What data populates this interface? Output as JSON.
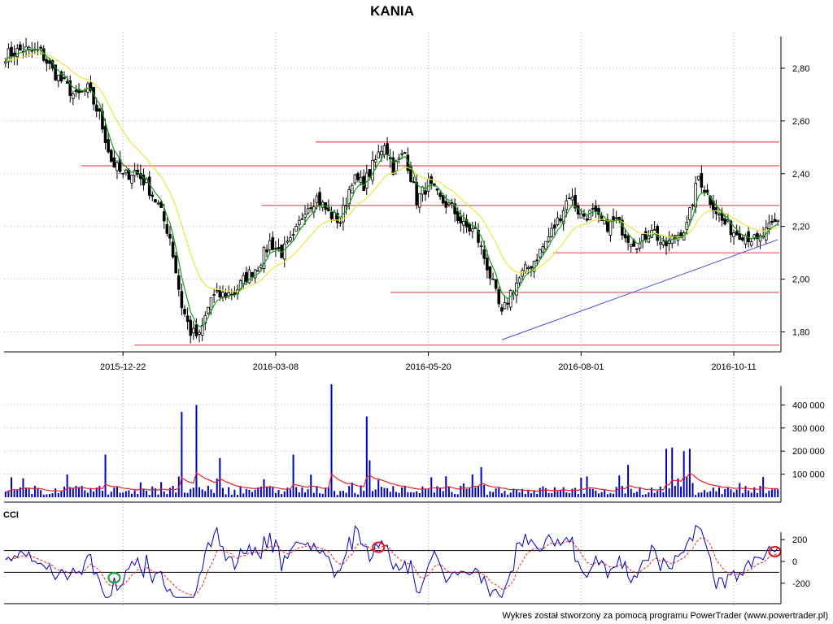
{
  "page": {
    "footer": "Wykres został stworzony za pomocą programu PowerTrader (www.powertrader.pl)"
  },
  "colors": {
    "candle_body": "#000000",
    "ma_fast": "#1a9e1a",
    "ma_slow": "#e8e83c",
    "resistance": "#e8606a",
    "trendline": "#4a4ae0",
    "volume_bar": "#0000c0",
    "volume_avg": "#e82020",
    "cci_line": "#0000c0",
    "cci_signal": "#e82020",
    "oversold_marker": "#20a040",
    "overbought_marker": "#e02020"
  },
  "chart_data": [
    {
      "type": "candlestick",
      "title": "KANIA",
      "x_ticks": [
        "2015-12-22",
        "2016-03-08",
        "2016-05-20",
        "2016-08-01",
        "2016-10-11"
      ],
      "y_ticks": [
        "2,80",
        "2,60",
        "2,40",
        "2,20",
        "2,00",
        "1,80"
      ],
      "ylim": [
        1.74,
        2.92
      ],
      "price_path": [
        [
          0,
          2.85
        ],
        [
          6,
          2.87
        ],
        [
          12,
          2.86
        ],
        [
          16,
          2.79
        ],
        [
          20,
          2.74
        ],
        [
          24,
          2.69
        ],
        [
          28,
          2.72
        ],
        [
          32,
          2.62
        ],
        [
          36,
          2.45
        ],
        [
          40,
          2.39
        ],
        [
          44,
          2.41
        ],
        [
          48,
          2.36
        ],
        [
          52,
          2.28
        ],
        [
          56,
          2.16
        ],
        [
          60,
          1.9
        ],
        [
          63,
          1.8
        ],
        [
          66,
          1.78
        ],
        [
          70,
          1.93
        ],
        [
          74,
          1.94
        ],
        [
          78,
          1.95
        ],
        [
          82,
          2.01
        ],
        [
          86,
          2.05
        ],
        [
          90,
          2.14
        ],
        [
          94,
          2.1
        ],
        [
          98,
          2.15
        ],
        [
          102,
          2.27
        ],
        [
          106,
          2.31
        ],
        [
          110,
          2.25
        ],
        [
          114,
          2.22
        ],
        [
          118,
          2.38
        ],
        [
          122,
          2.36
        ],
        [
          126,
          2.45
        ],
        [
          129,
          2.52
        ],
        [
          132,
          2.42
        ],
        [
          136,
          2.48
        ],
        [
          140,
          2.3
        ],
        [
          144,
          2.36
        ],
        [
          148,
          2.3
        ],
        [
          152,
          2.27
        ],
        [
          156,
          2.2
        ],
        [
          160,
          2.18
        ],
        [
          164,
          2.05
        ],
        [
          167,
          1.94
        ],
        [
          169,
          1.86
        ],
        [
          172,
          1.95
        ],
        [
          176,
          2.02
        ],
        [
          180,
          2.07
        ],
        [
          184,
          2.14
        ],
        [
          188,
          2.22
        ],
        [
          192,
          2.32
        ],
        [
          196,
          2.24
        ],
        [
          200,
          2.25
        ],
        [
          204,
          2.2
        ],
        [
          208,
          2.22
        ],
        [
          212,
          2.16
        ],
        [
          216,
          2.13
        ],
        [
          220,
          2.2
        ],
        [
          224,
          2.12
        ],
        [
          228,
          2.16
        ],
        [
          232,
          2.2
        ],
        [
          236,
          2.39
        ],
        [
          240,
          2.3
        ],
        [
          244,
          2.22
        ],
        [
          248,
          2.18
        ],
        [
          252,
          2.17
        ],
        [
          256,
          2.14
        ],
        [
          260,
          2.19
        ],
        [
          263,
          2.22
        ]
      ],
      "horizontal_levels": [
        2.52,
        2.43,
        2.28,
        2.1,
        1.95,
        1.75
      ],
      "trendline": {
        "from": [
          169,
          1.77
        ],
        "to": [
          263,
          2.15
        ]
      },
      "series": [
        {
          "name": "",
          "kind": "candles"
        },
        {
          "name": "",
          "kind": "moving_average_fast"
        },
        {
          "name": "",
          "kind": "moving_average_slow"
        }
      ]
    },
    {
      "type": "bar",
      "title": "",
      "y_ticks": [
        "400 000",
        "300 000",
        "200 000",
        "100 000"
      ],
      "ylim": [
        0,
        500000
      ],
      "spikes": [
        [
          34,
          185000
        ],
        [
          60,
          370000
        ],
        [
          65,
          400000
        ],
        [
          73,
          170000
        ],
        [
          98,
          185000
        ],
        [
          111,
          490000
        ],
        [
          123,
          350000
        ],
        [
          124,
          160000
        ],
        [
          162,
          130000
        ],
        [
          212,
          140000
        ],
        [
          225,
          210000
        ],
        [
          227,
          215000
        ],
        [
          231,
          200000
        ],
        [
          233,
          210000
        ]
      ],
      "baseline_level": 25000
    },
    {
      "type": "line",
      "title": "CCI",
      "y_ticks": [
        "200",
        "0",
        "-200"
      ],
      "ylim": [
        -380,
        380
      ],
      "reference_lines": [
        100,
        -100
      ],
      "markers": [
        {
          "kind": "oversold",
          "index": 37,
          "value": -150
        },
        {
          "kind": "overbought",
          "index": 127,
          "value": 130
        },
        {
          "kind": "overbought",
          "index": 262,
          "value": 90
        }
      ]
    }
  ]
}
